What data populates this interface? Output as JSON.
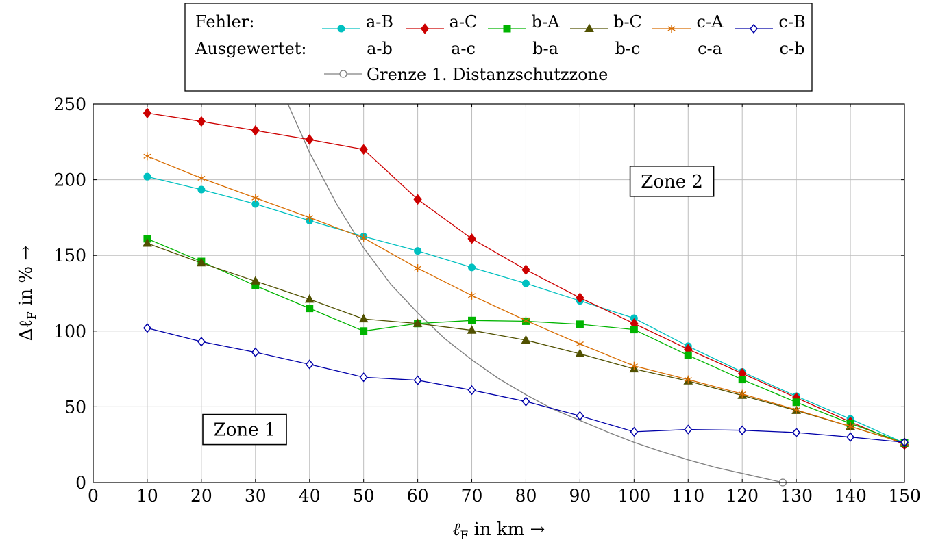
{
  "chart_data": {
    "type": "line",
    "xlabel_base": "ℓ",
    "xlabel_sub": "F",
    "xlabel_rest": " in km →",
    "ylabel_prefix": "Δℓ",
    "ylabel_sub": "F",
    "ylabel_rest": " in % →",
    "xlim": [
      0,
      150
    ],
    "ylim": [
      0,
      250
    ],
    "xticks": [
      0,
      10,
      20,
      30,
      40,
      50,
      60,
      70,
      80,
      90,
      100,
      110,
      120,
      130,
      140,
      150
    ],
    "yticks": [
      0,
      50,
      100,
      150,
      200,
      250
    ],
    "grid": true,
    "legend": {
      "row1_label": "Fehler:",
      "row2_label": "Ausgewertet:",
      "placement": "top-center",
      "boundary_label": "Grenze 1. Distanzschutzzone"
    },
    "x": [
      10,
      20,
      30,
      40,
      50,
      60,
      70,
      80,
      90,
      100,
      110,
      120,
      130,
      140,
      150
    ],
    "series": [
      {
        "name": "a-B",
        "evaluated": "a-b",
        "color": "#00c0c0",
        "marker": "circle",
        "values": [
          202,
          193.5,
          184,
          173,
          162.5,
          153,
          142,
          131.5,
          120,
          108.5,
          90,
          73,
          57,
          42,
          26
        ]
      },
      {
        "name": "a-C",
        "evaluated": "a-c",
        "color": "#cc0000",
        "marker": "diamond",
        "values": [
          244,
          238.5,
          232.5,
          226.5,
          220,
          187,
          161,
          140.5,
          122,
          105,
          88,
          72,
          56,
          40,
          25
        ]
      },
      {
        "name": "b-A",
        "evaluated": "b-a",
        "color": "#00b400",
        "marker": "square",
        "values": [
          161,
          146,
          130,
          115,
          100,
          105,
          107,
          106.5,
          104.5,
          101,
          84,
          68,
          53,
          39,
          26
        ]
      },
      {
        "name": "b-C",
        "evaluated": "b-c",
        "color": "#505000",
        "marker": "triangle",
        "values": [
          158,
          145,
          133,
          121,
          108,
          105,
          100.5,
          94,
          85,
          75,
          67,
          57.5,
          47.5,
          37,
          26
        ]
      },
      {
        "name": "c-A",
        "evaluated": "c-a",
        "color": "#d86c00",
        "marker": "asterisk",
        "values": [
          215.5,
          201,
          188,
          175,
          161.5,
          141.5,
          123.5,
          107,
          91.5,
          77,
          68,
          58.5,
          48,
          37,
          26
        ]
      },
      {
        "name": "c-B",
        "evaluated": "c-b",
        "color": "#0000a8",
        "marker": "diamond-open",
        "values": [
          102,
          93,
          86,
          78,
          69.5,
          67.5,
          61,
          53.5,
          44,
          33.5,
          35,
          34.5,
          33,
          30,
          26.5
        ]
      }
    ],
    "boundary": {
      "color": "#808080",
      "x": [
        36,
        40,
        45,
        50,
        55,
        60,
        65,
        70,
        75,
        80,
        85,
        90,
        95,
        100,
        105,
        110,
        115,
        120,
        125,
        127.5
      ],
      "y": [
        250,
        218,
        184,
        155,
        131,
        112,
        95,
        81,
        68.5,
        58,
        48.5,
        41,
        33.5,
        26.5,
        20.5,
        15,
        10,
        6,
        2,
        0
      ]
    },
    "annotations": [
      {
        "text": "Zone 1",
        "x": 28,
        "y": 35
      },
      {
        "text": "Zone 2",
        "x": 107,
        "y": 199
      }
    ]
  }
}
